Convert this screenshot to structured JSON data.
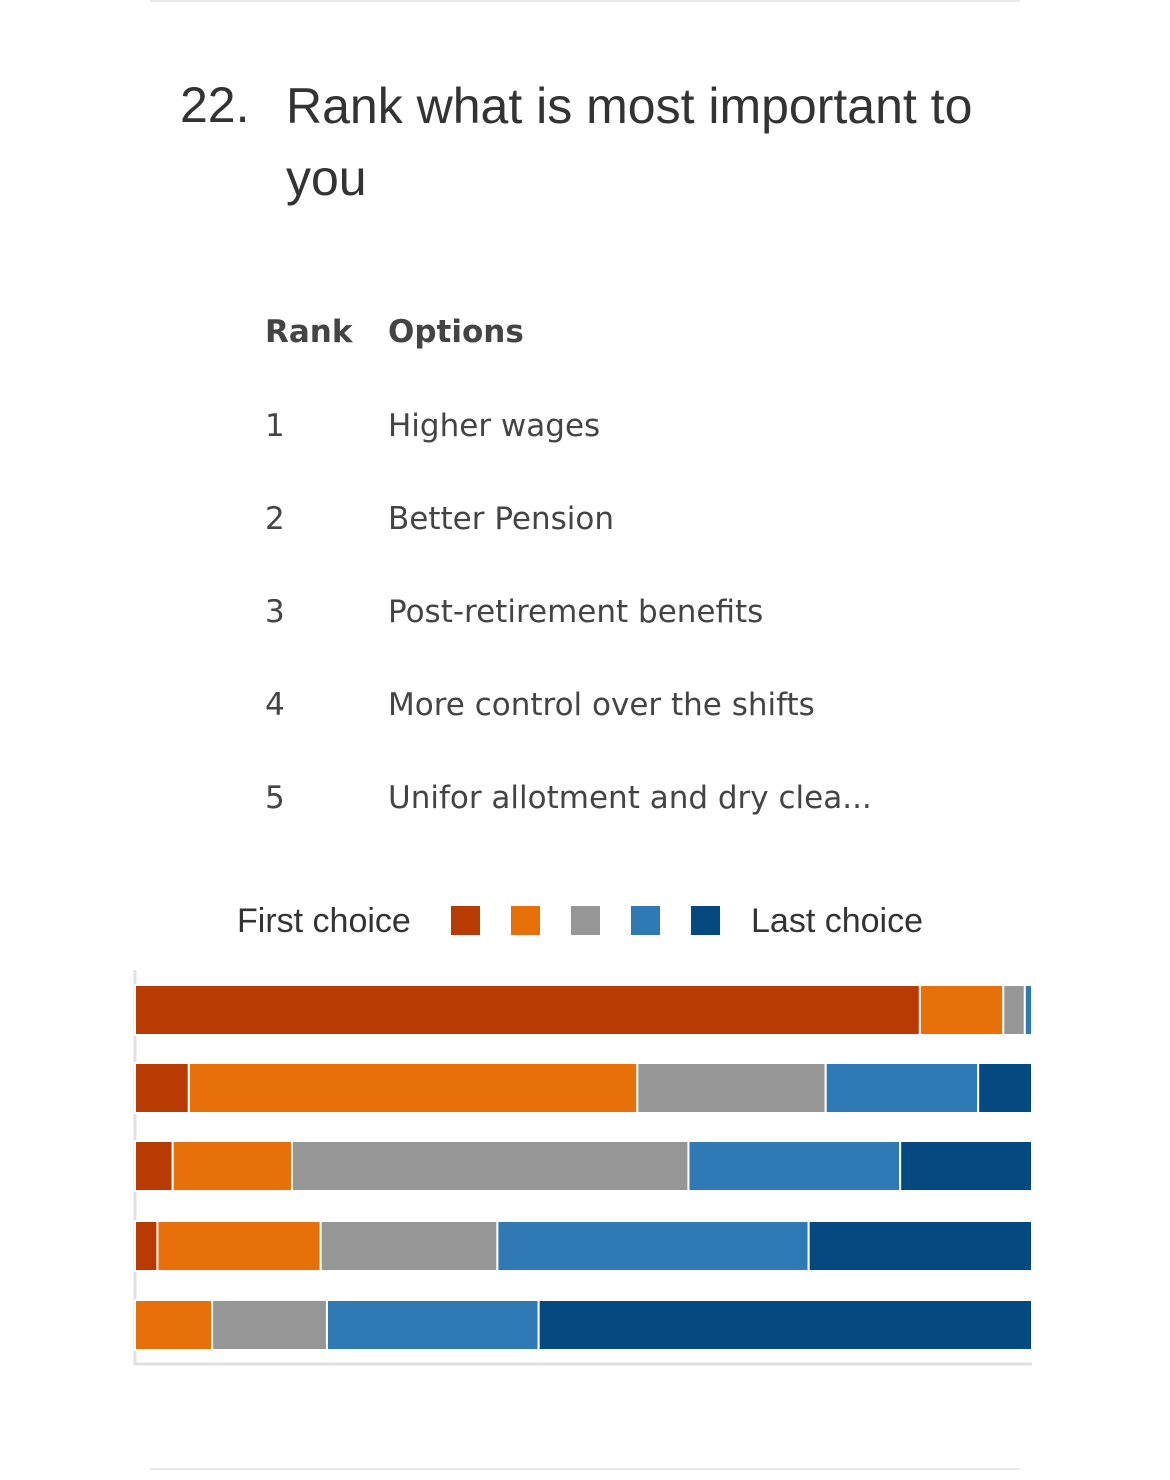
{
  "question": {
    "number": "22.",
    "title": "Rank what is most important to you"
  },
  "rank_table": {
    "header_rank": "Rank",
    "header_options": "Options",
    "rows": [
      {
        "rank": "1",
        "option": "Higher wages"
      },
      {
        "rank": "2",
        "option": "Better Pension"
      },
      {
        "rank": "3",
        "option": "Post-retirement benefits"
      },
      {
        "rank": "4",
        "option": "More control over the shifts"
      },
      {
        "rank": "5",
        "option": "Unifor allotment and dry clea..."
      }
    ]
  },
  "legend": {
    "first_label": "First choice",
    "last_label": "Last choice"
  },
  "colors": {
    "choice_1": "#b83b04",
    "choice_2": "#e8700a",
    "choice_3": "#969696",
    "choice_4": "#2f7ab5",
    "choice_5": "#044a80",
    "axis": "#e0e0e0"
  },
  "chart_data": {
    "type": "bar",
    "orientation": "horizontal",
    "stacked": true,
    "normalized": true,
    "categories": [
      "Higher wages",
      "Better Pension",
      "Post-retirement benefits",
      "More control over the shifts",
      "Unifor allotment and dry clea..."
    ],
    "series": [
      {
        "name": "First choice",
        "values": [
          87.5,
          6.0,
          4.2,
          2.5,
          0.0
        ]
      },
      {
        "values": [
          9.3,
          50.0,
          13.3,
          18.2,
          8.6
        ]
      },
      {
        "values": [
          2.4,
          21.0,
          44.2,
          19.7,
          12.8
        ]
      },
      {
        "values": [
          0.8,
          17.0,
          23.6,
          34.7,
          23.6
        ]
      },
      {
        "name": "Last choice",
        "values": [
          0.0,
          6.0,
          14.7,
          24.9,
          55.0
        ]
      }
    ],
    "xlim": [
      0,
      100
    ],
    "legend_position": "top",
    "grid": false
  }
}
